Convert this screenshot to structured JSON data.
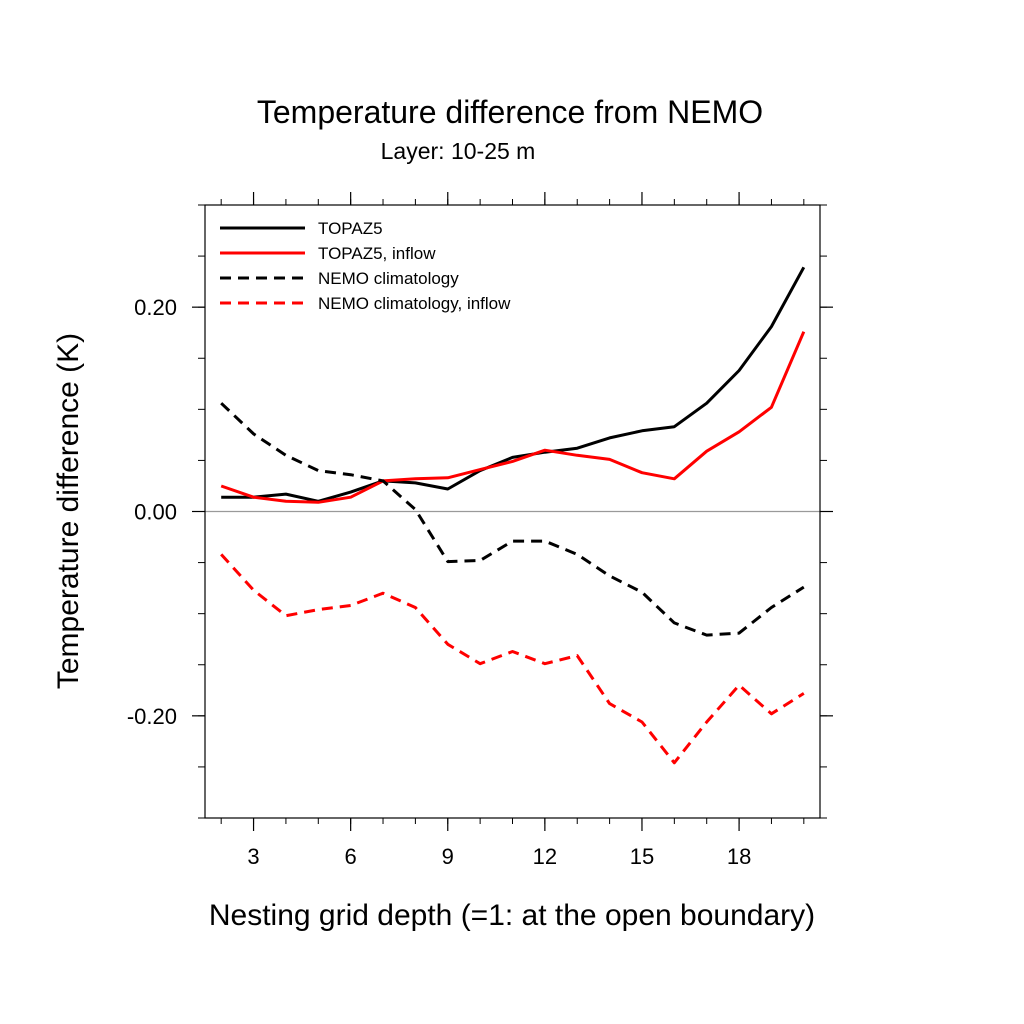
{
  "chart_data": {
    "type": "line",
    "title": "Temperature difference from NEMO",
    "subtitle": "Layer: 10-25 m",
    "xlabel": "Nesting grid depth (=1: at the open boundary)",
    "ylabel": "Temperature difference (K)",
    "xlim": [
      1.5,
      20.5
    ],
    "ylim": [
      -0.3,
      0.3
    ],
    "x_ticks": [
      3,
      6,
      9,
      12,
      15,
      18
    ],
    "x_tick_labels": [
      "3",
      "6",
      "9",
      "12",
      "15",
      "18"
    ],
    "y_ticks": [
      -0.2,
      0.0,
      0.2
    ],
    "y_tick_labels": [
      "-0.20",
      "0.00",
      "0.20"
    ],
    "reference_line": 0.0,
    "legend_position": "top-left",
    "x": [
      2,
      3,
      4,
      5,
      6,
      7,
      8,
      9,
      10,
      11,
      12,
      13,
      14,
      15,
      16,
      17,
      18,
      19,
      20
    ],
    "series": [
      {
        "name": "TOPAZ5",
        "color": "#000000",
        "dash": "solid",
        "values": [
          0.014,
          0.014,
          0.017,
          0.01,
          0.019,
          0.03,
          0.028,
          0.022,
          0.04,
          0.053,
          0.058,
          0.062,
          0.072,
          0.079,
          0.083,
          0.106,
          0.138,
          0.181,
          0.239
        ]
      },
      {
        "name": "TOPAZ5, inflow",
        "color": "#ff0000",
        "dash": "solid",
        "values": [
          0.025,
          0.014,
          0.01,
          0.009,
          0.014,
          0.03,
          0.032,
          0.033,
          0.041,
          0.049,
          0.06,
          0.055,
          0.051,
          0.038,
          0.032,
          0.059,
          0.078,
          0.102,
          0.176
        ]
      },
      {
        "name": "NEMO climatology",
        "color": "#000000",
        "dash": "dashed",
        "values": [
          0.106,
          0.076,
          0.055,
          0.04,
          0.036,
          0.03,
          0.002,
          -0.049,
          -0.048,
          -0.029,
          -0.029,
          -0.042,
          -0.063,
          -0.079,
          -0.109,
          -0.121,
          -0.119,
          -0.094,
          -0.074
        ]
      },
      {
        "name": "NEMO climatology, inflow",
        "color": "#ff0000",
        "dash": "dashed",
        "values": [
          -0.042,
          -0.077,
          -0.102,
          -0.096,
          -0.092,
          -0.08,
          -0.094,
          -0.13,
          -0.149,
          -0.137,
          -0.149,
          -0.141,
          -0.188,
          -0.206,
          -0.246,
          -0.206,
          -0.17,
          -0.198,
          -0.178
        ]
      }
    ]
  }
}
